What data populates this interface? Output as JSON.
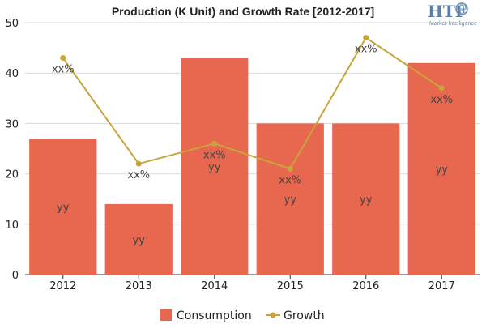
{
  "chart_data": {
    "type": "bar",
    "title": "Production (K Unit) and Growth Rate [2012-2017]",
    "categories": [
      "2012",
      "2013",
      "2014",
      "2015",
      "2016",
      "2017"
    ],
    "ylim": [
      0,
      50
    ],
    "yticks": [
      0,
      10,
      20,
      30,
      40,
      50
    ],
    "grid": true,
    "legend_position": "bottom",
    "series": [
      {
        "name": "Consumption",
        "kind": "bar",
        "color": "#e8684f",
        "values": [
          27,
          14,
          43,
          30,
          30,
          42
        ],
        "data_label": "yy"
      },
      {
        "name": "Growth",
        "kind": "line",
        "color": "#c9a43a",
        "values": [
          43,
          22,
          26,
          21,
          47,
          37
        ],
        "data_label": "xx%"
      }
    ]
  },
  "logo": {
    "text": "HTF",
    "subtext": "Market Intelligence",
    "icon": "globe-icon"
  }
}
